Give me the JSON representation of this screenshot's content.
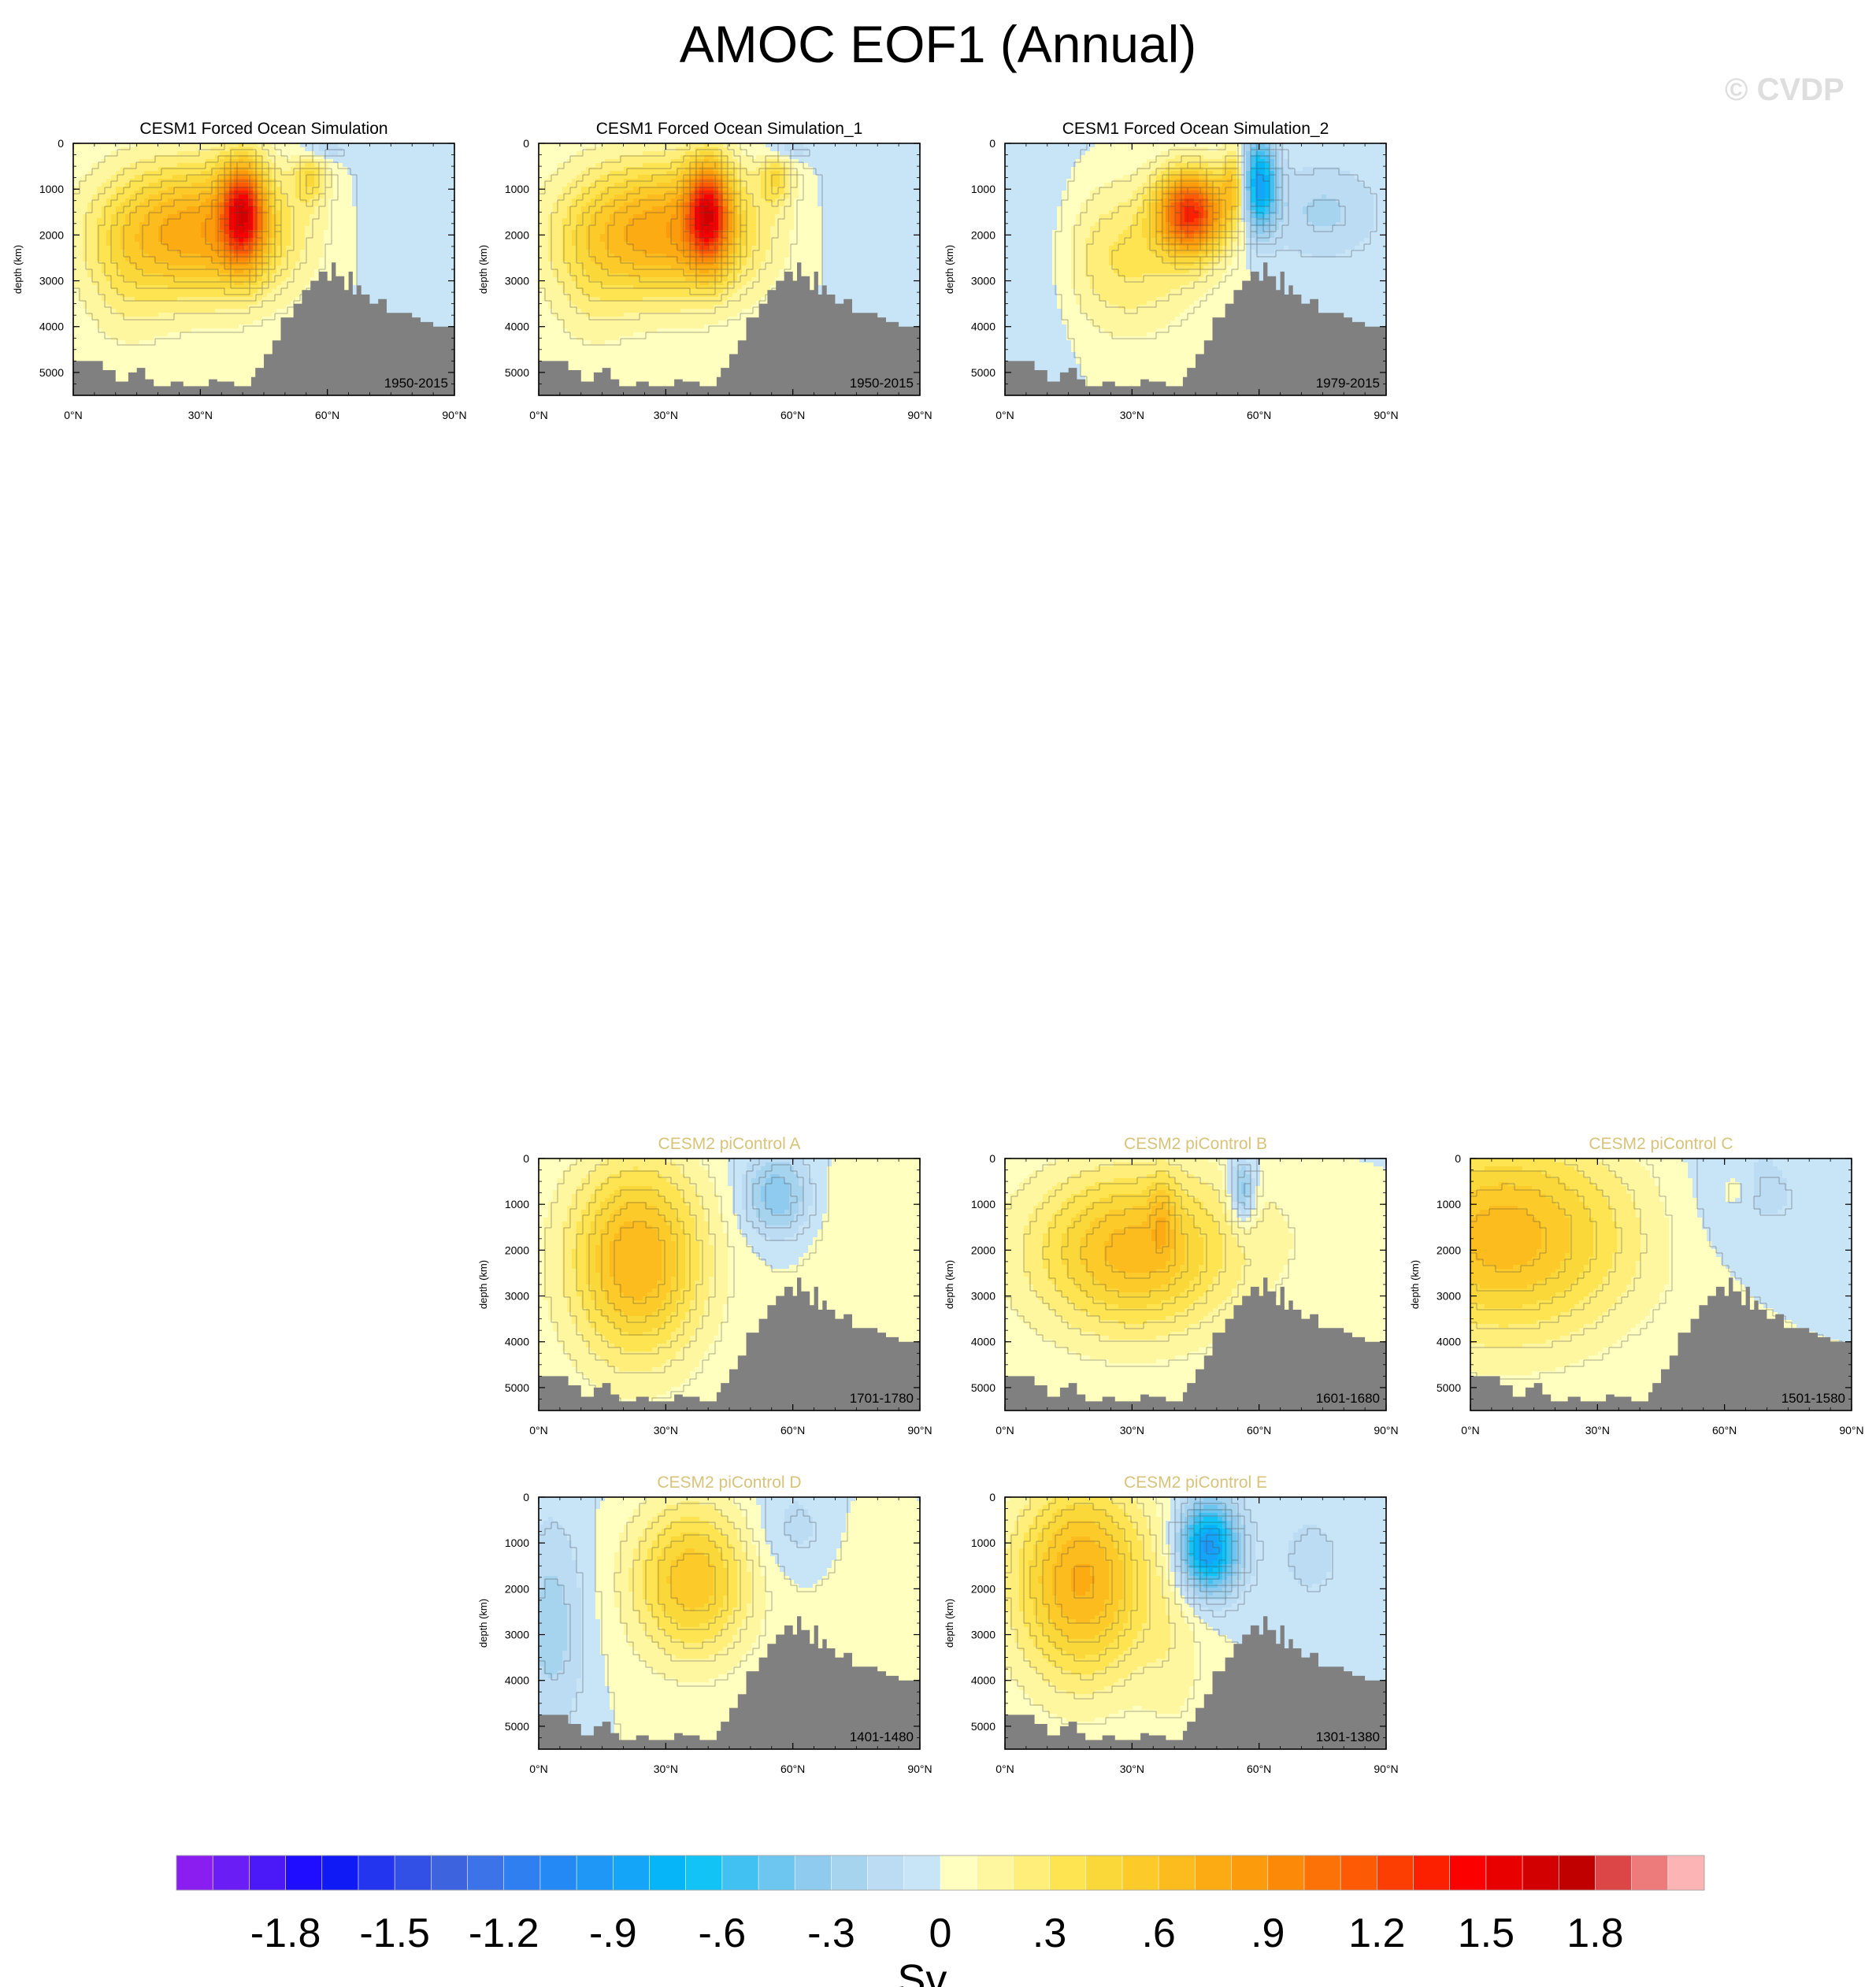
{
  "title": "AMOC EOF1 (Annual)",
  "watermark": "© CVDP",
  "chart_data": {
    "type": "contour",
    "units": "Sv",
    "x_axis": {
      "ticks": [
        "0°N",
        "30°N",
        "60°N",
        "90°N"
      ],
      "range": [
        0,
        90
      ]
    },
    "y_axis": {
      "label": "depth (km)",
      "ticks": [
        "0",
        "1000",
        "2000",
        "3000",
        "4000",
        "5000"
      ],
      "range": [
        5500,
        0
      ]
    },
    "colorbar": {
      "labels": [
        "-1.8",
        "-1.5",
        "-1.2",
        "-.9",
        "-.6",
        "-.3",
        "0",
        ".3",
        ".6",
        ".9",
        "1.2",
        "1.5",
        "1.8"
      ],
      "unit_label": "Sv",
      "levels": [
        -2.0,
        -1.9,
        -1.8,
        -1.7,
        -1.6,
        -1.5,
        -1.4,
        -1.3,
        -1.2,
        -1.1,
        -1.0,
        -0.9,
        -0.8,
        -0.7,
        -0.6,
        -0.5,
        -0.4,
        -0.3,
        -0.2,
        -0.1,
        0,
        0.1,
        0.2,
        0.3,
        0.4,
        0.5,
        0.6,
        0.7,
        0.8,
        0.9,
        1.0,
        1.1,
        1.2,
        1.3,
        1.4,
        1.5,
        1.6,
        1.7,
        1.8,
        1.9,
        2.0
      ],
      "colors": [
        "#8a1ef0",
        "#6a1ef5",
        "#4b18f8",
        "#1e0dff",
        "#0f1af5",
        "#2335ee",
        "#3250e6",
        "#3d63df",
        "#3c73e8",
        "#2f7ff0",
        "#2489f5",
        "#1e97f7",
        "#14a4f8",
        "#05b5f7",
        "#12c3f5",
        "#41c0f2",
        "#6cc6ef",
        "#8ecbee",
        "#a6d4ef",
        "#bcdcf4",
        "#c8e4f7",
        "#ffffc0",
        "#fff6a0",
        "#ffee7a",
        "#fde450",
        "#fbd83a",
        "#fccb2a",
        "#fcbc1e",
        "#fcac12",
        "#fc9c0c",
        "#fc8a08",
        "#fc7206",
        "#fc5a04",
        "#fc3e02",
        "#fc2000",
        "#fc0000",
        "#e80000",
        "#d20000",
        "#c00000",
        "#dd4646",
        "#ee7b7b",
        "#fdb4b4"
      ]
    },
    "panels": [
      {
        "title": "CESM1 Forced Ocean Simulation",
        "period": "1950-2015",
        "dominant": "forced1",
        "title_style": "black"
      },
      {
        "title": "CESM1 Forced Ocean Simulation_1",
        "period": "1950-2015",
        "dominant": "forced1",
        "title_style": "black"
      },
      {
        "title": "CESM1 Forced Ocean Simulation_2",
        "period": "1979-2015",
        "dominant": "forced2",
        "title_style": "black"
      },
      {
        "title": "CESM2 piControl A",
        "period": "1701-1780",
        "dominant": "pcA",
        "title_style": "tan"
      },
      {
        "title": "CESM2 piControl B",
        "period": "1601-1680",
        "dominant": "pcB",
        "title_style": "tan"
      },
      {
        "title": "CESM2 piControl C",
        "period": "1501-1580",
        "dominant": "pcC",
        "title_style": "tan"
      },
      {
        "title": "CESM2 piControl D",
        "period": "1401-1480",
        "dominant": "pcD",
        "title_style": "tan"
      },
      {
        "title": "CESM2 piControl E",
        "period": "1301-1380",
        "dominant": "pcE",
        "title_style": "tan"
      }
    ]
  }
}
